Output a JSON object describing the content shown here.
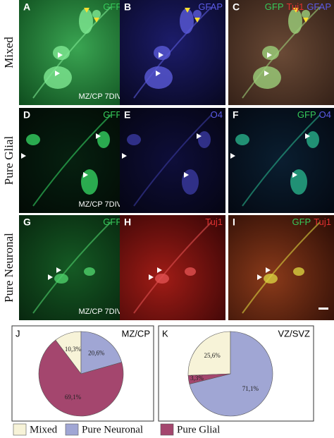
{
  "rows": [
    "Mixed",
    "Pure Glial",
    "Pure Neuronal"
  ],
  "panels": [
    {
      "letter": "A",
      "stain": [
        "GFP"
      ],
      "stain_colors": [
        "#36c95a"
      ],
      "caption": "MZ/CP 7DIV"
    },
    {
      "letter": "B",
      "stain": [
        "GFAP"
      ],
      "stain_colors": [
        "#5b5be6"
      ]
    },
    {
      "letter": "C",
      "stain": [
        "GFP",
        "Tuj1",
        "GFAP"
      ],
      "stain_colors": [
        "#36c95a",
        "#e03030",
        "#5b5be6"
      ]
    },
    {
      "letter": "D",
      "stain": [
        "GFP"
      ],
      "stain_colors": [
        "#36c95a"
      ],
      "caption": "MZ/CP 7DIV"
    },
    {
      "letter": "E",
      "stain": [
        "O4"
      ],
      "stain_colors": [
        "#5b5be6"
      ]
    },
    {
      "letter": "F",
      "stain": [
        "GFP",
        "O4"
      ],
      "stain_colors": [
        "#36c95a",
        "#5b5be6"
      ]
    },
    {
      "letter": "G",
      "stain": [
        "GFP"
      ],
      "stain_colors": [
        "#36c95a"
      ],
      "caption": "MZ/CP 7DIV"
    },
    {
      "letter": "H",
      "stain": [
        "Tuj1"
      ],
      "stain_colors": [
        "#e03030"
      ]
    },
    {
      "letter": "I",
      "stain": [
        "GFP",
        "Tuj1"
      ],
      "stain_colors": [
        "#36c95a",
        "#e03030"
      ]
    }
  ],
  "chart_data": [
    {
      "type": "pie",
      "letter": "J",
      "title": "MZ/CP",
      "categories": [
        "Mixed",
        "Pure Neuronal",
        "Pure Glial"
      ],
      "values": [
        10.3,
        20.6,
        69.1
      ],
      "value_labels": [
        "10,3%",
        "20,6%",
        "69,1%"
      ],
      "colors": [
        "#f7f3d8",
        "#a0a6d4",
        "#a4466e"
      ]
    },
    {
      "type": "pie",
      "letter": "K",
      "title": "VZ/SVZ",
      "categories": [
        "Mixed",
        "Pure Neuronal",
        "Pure Glial"
      ],
      "values": [
        25.6,
        71.1,
        3.3
      ],
      "value_labels": [
        "25,6%",
        "71,1%",
        "3,3%"
      ],
      "colors": [
        "#f7f3d8",
        "#a0a6d4",
        "#a4466e"
      ]
    }
  ]
}
